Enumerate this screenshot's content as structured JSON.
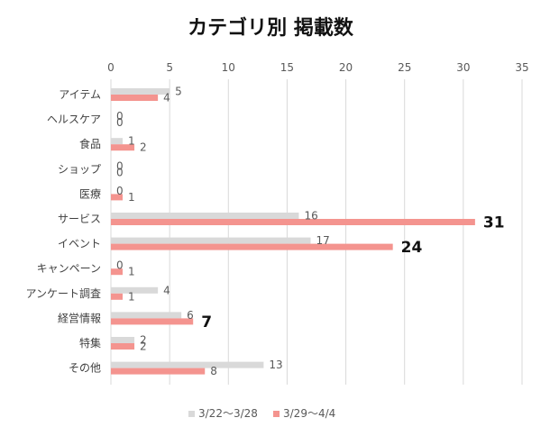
{
  "chart_data": {
    "type": "bar",
    "orientation": "horizontal",
    "title": "カテゴリ別 掲載数",
    "categories": [
      "アイテム",
      "ヘルスケア",
      "食品",
      "ショップ",
      "医療",
      "サービス",
      "イベント",
      "キャンペーン",
      "アンケート調査",
      "経営情報",
      "特集",
      "その他"
    ],
    "series": [
      {
        "name": "3/22〜3/28",
        "color": "#d9d9d9",
        "values": [
          5,
          0,
          1,
          0,
          0,
          16,
          17,
          0,
          4,
          6,
          2,
          13
        ]
      },
      {
        "name": "3/29〜4/4",
        "color": "#f4948f",
        "values": [
          4,
          0,
          2,
          0,
          1,
          31,
          24,
          1,
          1,
          7,
          2,
          8
        ]
      }
    ],
    "emphasized_labels": [
      {
        "category": "サービス",
        "series": 1,
        "value": 31
      },
      {
        "category": "イベント",
        "series": 1,
        "value": 24
      },
      {
        "category": "経営情報",
        "series": 1,
        "value": 7
      }
    ],
    "xlim": [
      0,
      35
    ],
    "xticks": [
      0,
      5,
      10,
      15,
      20,
      25,
      30,
      35
    ],
    "grid": true,
    "legend_position": "bottom"
  }
}
